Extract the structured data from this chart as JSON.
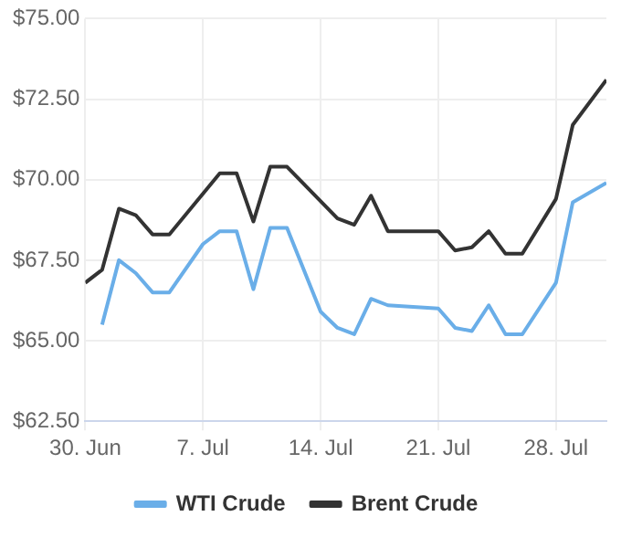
{
  "chart_data": {
    "type": "line",
    "legend": "bottom",
    "grid": true,
    "marker": "none",
    "line_style": "solid",
    "xlim": [
      "--06-30",
      "--07-31"
    ],
    "xticks": [
      {
        "value": "--06-30",
        "label": "30. Jun"
      },
      {
        "value": "--07-07",
        "label": "7. Jul"
      },
      {
        "value": "--07-14",
        "label": "14. Jul"
      },
      {
        "value": "--07-21",
        "label": "21. Jul"
      },
      {
        "value": "--07-28",
        "label": "28. Jul"
      }
    ],
    "ylim": [
      62.5,
      75
    ],
    "yticks": [
      {
        "value": 62.5,
        "label": "$62.50"
      },
      {
        "value": 65,
        "label": "$65.00"
      },
      {
        "value": 67.5,
        "label": "$67.50"
      },
      {
        "value": 70,
        "label": "$70.00"
      },
      {
        "value": 72.5,
        "label": "$72.50"
      },
      {
        "value": 75,
        "label": "$75.00"
      }
    ],
    "series": [
      {
        "name": "WTI Crude",
        "color": "#6aaee8",
        "x": [
          "--07-01",
          "--07-02",
          "--07-03",
          "--07-04",
          "--07-05",
          "--07-07",
          "--07-08",
          "--07-09",
          "--07-10",
          "--07-11",
          "--07-12",
          "--07-14",
          "--07-15",
          "--07-16",
          "--07-17",
          "--07-18",
          "--07-21",
          "--07-22",
          "--07-23",
          "--07-24",
          "--07-25",
          "--07-26",
          "--07-28",
          "--07-29",
          "--07-31"
        ],
        "values": [
          65.5,
          67.5,
          67.1,
          66.5,
          66.5,
          68.0,
          68.4,
          68.4,
          66.6,
          68.5,
          68.5,
          65.9,
          65.4,
          65.2,
          66.3,
          66.1,
          66.0,
          65.4,
          65.3,
          66.1,
          65.2,
          65.2,
          66.8,
          69.3,
          69.9
        ]
      },
      {
        "name": "Brent Crude",
        "color": "#333333",
        "x": [
          "--06-30",
          "--07-01",
          "--07-02",
          "--07-03",
          "--07-04",
          "--07-05",
          "--07-08",
          "--07-09",
          "--07-10",
          "--07-11",
          "--07-12",
          "--07-15",
          "--07-16",
          "--07-17",
          "--07-18",
          "--07-21",
          "--07-22",
          "--07-23",
          "--07-24",
          "--07-25",
          "--07-26",
          "--07-28",
          "--07-29",
          "--07-31"
        ],
        "values": [
          66.8,
          67.2,
          69.1,
          68.9,
          68.3,
          68.3,
          70.2,
          70.2,
          68.7,
          70.4,
          70.4,
          68.8,
          68.6,
          69.5,
          68.4,
          68.4,
          67.8,
          67.9,
          68.4,
          67.7,
          67.7,
          69.4,
          71.7,
          73.1
        ]
      }
    ]
  }
}
